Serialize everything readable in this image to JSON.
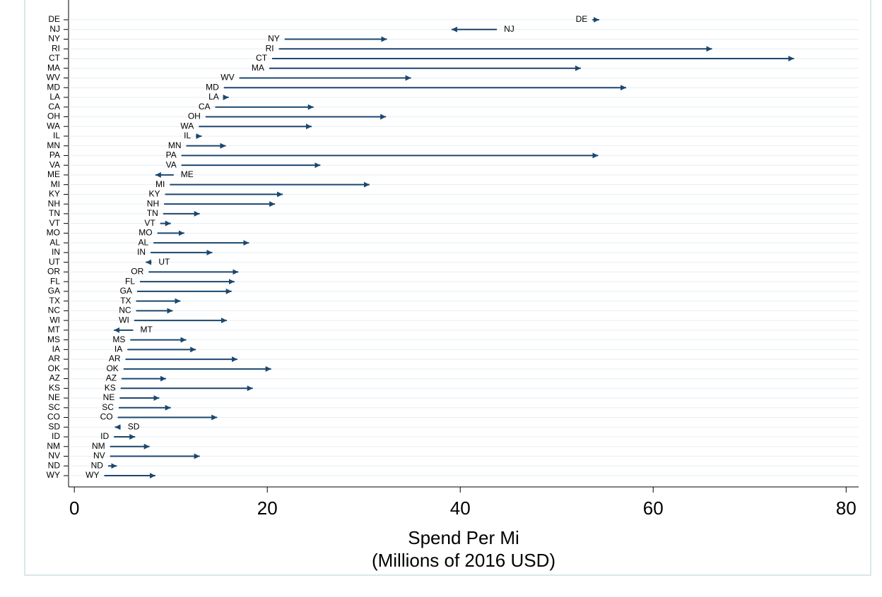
{
  "chart_data": {
    "type": "arrow",
    "categories": [
      "DE",
      "NJ",
      "NY",
      "RI",
      "CT",
      "MA",
      "WV",
      "MD",
      "LA",
      "CA",
      "OH",
      "WA",
      "IL",
      "MN",
      "PA",
      "VA",
      "ME",
      "MI",
      "KY",
      "NH",
      "TN",
      "VT",
      "MO",
      "AL",
      "IN",
      "UT",
      "OR",
      "FL",
      "GA",
      "TX",
      "NC",
      "WI",
      "MT",
      "MS",
      "IA",
      "AR",
      "OK",
      "AZ",
      "KS",
      "NE",
      "SC",
      "CO",
      "SD",
      "ID",
      "NM",
      "NV",
      "ND",
      "WY"
    ],
    "start": [
      53.7,
      43.8,
      21.8,
      21.2,
      20.5,
      20.2,
      17.1,
      15.5,
      15.5,
      14.6,
      13.6,
      12.9,
      12.6,
      11.6,
      11.1,
      11.1,
      10.3,
      9.9,
      9.4,
      9.3,
      9.2,
      8.9,
      8.6,
      8.2,
      7.9,
      8.0,
      7.7,
      6.8,
      6.5,
      6.4,
      6.4,
      6.2,
      6.1,
      5.8,
      5.5,
      5.3,
      5.1,
      4.9,
      4.8,
      4.7,
      4.6,
      4.5,
      4.8,
      4.1,
      3.7,
      3.7,
      3.5,
      3.1
    ],
    "end": [
      54.4,
      39.1,
      32.4,
      66.1,
      74.6,
      52.5,
      34.9,
      57.2,
      16.0,
      24.8,
      32.3,
      24.6,
      13.2,
      15.7,
      54.3,
      25.5,
      8.4,
      30.6,
      21.6,
      20.8,
      13.0,
      10.0,
      11.4,
      18.1,
      14.3,
      7.4,
      17.0,
      16.6,
      16.3,
      11.0,
      10.2,
      15.8,
      4.1,
      11.6,
      12.6,
      16.9,
      20.4,
      9.5,
      18.5,
      8.8,
      10.0,
      14.8,
      4.2,
      6.3,
      7.8,
      13.0,
      4.4,
      8.4
    ],
    "color": "#1a476f",
    "xlim": [
      -0.6,
      81.3
    ],
    "xticks": [
      0,
      20,
      40,
      60,
      80
    ],
    "xlabel": [
      "Spend Per Mi",
      "(Millions of 2016 USD)"
    ],
    "grid": true
  }
}
